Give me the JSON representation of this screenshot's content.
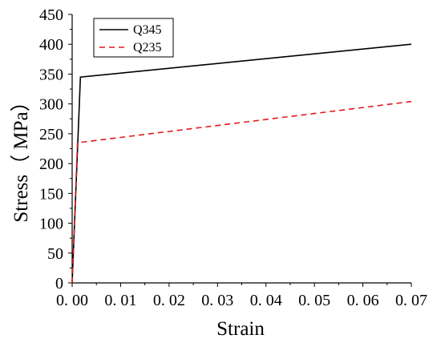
{
  "chart_data": {
    "type": "line",
    "xlabel": "Strain",
    "ylabel": "Stress（ MPa）",
    "xlim": [
      0,
      0.07
    ],
    "ylim": [
      0,
      450
    ],
    "x_ticks": [
      0,
      0.01,
      0.02,
      0.03,
      0.04,
      0.05,
      0.06,
      0.07
    ],
    "x_tick_labels": [
      "0. 00",
      "0. 01",
      "0. 02",
      "0. 03",
      "0. 04",
      "0. 05",
      "0. 06",
      "0. 07"
    ],
    "y_ticks": [
      0,
      50,
      100,
      150,
      200,
      250,
      300,
      350,
      400,
      450
    ],
    "y_tick_labels": [
      "0",
      "50",
      "100",
      "150",
      "200",
      "250",
      "300",
      "350",
      "400",
      "450"
    ],
    "grid": false,
    "legend_position": "top-left",
    "series": [
      {
        "name": "Q345",
        "color": "#000000",
        "dash": "solid",
        "x": [
          0,
          0.0017,
          0.07
        ],
        "y": [
          0,
          345,
          400
        ]
      },
      {
        "name": "Q235",
        "color": "#e31a1c",
        "dash": "dashed",
        "x": [
          0,
          0.0011,
          0.07
        ],
        "y": [
          0,
          235,
          304
        ]
      }
    ]
  }
}
